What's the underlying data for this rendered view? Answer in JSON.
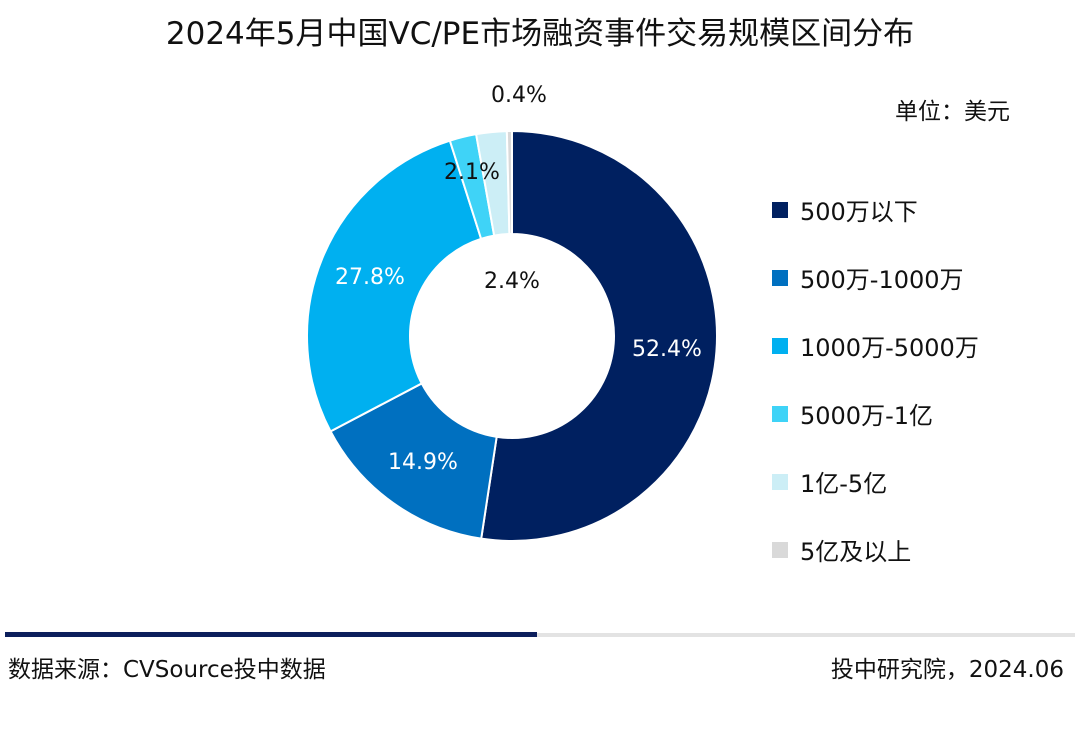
{
  "chart_data": {
    "type": "pie",
    "donut": true,
    "title": "2024年5月中国VC/PE市场融资事件交易规模区间分布",
    "unit": "单位：美元",
    "categories": [
      "500万以下",
      "500万-1000万",
      "1000万-5000万",
      "5000万-1亿",
      "1亿-5亿",
      "5亿及以上"
    ],
    "values": [
      52.4,
      14.9,
      27.8,
      2.1,
      2.4,
      0.4
    ],
    "labels": [
      "52.4%",
      "14.9%",
      "27.8%",
      "2.1%",
      "2.4%",
      "0.4%"
    ],
    "colors": [
      "#002060",
      "#0070C0",
      "#00B0F0",
      "#3FD3F7",
      "#CCEEF6",
      "#D9D9D9"
    ],
    "legend_position": "right"
  },
  "footer": {
    "source": "数据来源：CVSource投中数据",
    "org": "投中研究院，2024.06"
  }
}
